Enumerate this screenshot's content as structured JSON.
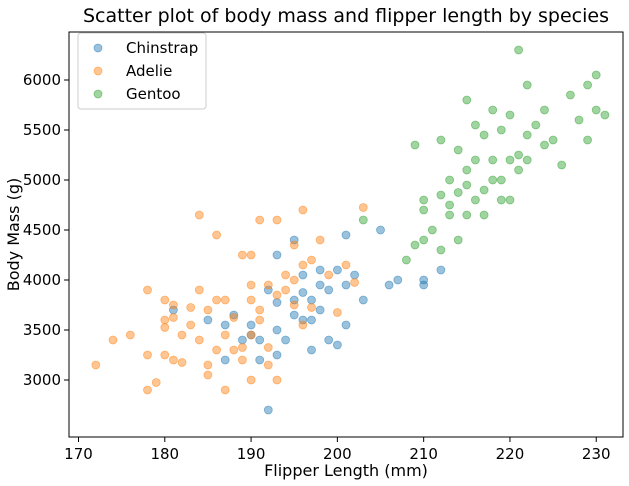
{
  "chart_data": {
    "type": "scatter",
    "title": "Scatter plot of body mass and flipper length by species",
    "xlabel": "Flipper Length (mm)",
    "ylabel": "Body Mass (g)",
    "xlim": [
      168.9,
      233.1
    ],
    "ylim": [
      2430,
      6480
    ],
    "xticks": [
      170,
      180,
      190,
      200,
      210,
      220,
      230
    ],
    "yticks": [
      3000,
      3500,
      4000,
      4500,
      5000,
      5500,
      6000
    ],
    "grid": false,
    "legend_position": "top-left",
    "series": [
      {
        "name": "Chinstrap",
        "color": "#1f77b4",
        "points": [
          [
            181,
            3700
          ],
          [
            185,
            3600
          ],
          [
            187,
            3200
          ],
          [
            187,
            3550
          ],
          [
            188,
            3650
          ],
          [
            189,
            3400
          ],
          [
            190,
            3450
          ],
          [
            190,
            3550
          ],
          [
            191,
            3200
          ],
          [
            191,
            3400
          ],
          [
            192,
            2700
          ],
          [
            192,
            3900
          ],
          [
            193,
            3250
          ],
          [
            193,
            3500
          ],
          [
            193,
            3775
          ],
          [
            193,
            4250
          ],
          [
            194,
            3400
          ],
          [
            195,
            3650
          ],
          [
            195,
            3800
          ],
          [
            195,
            4400
          ],
          [
            196,
            3600
          ],
          [
            196,
            3875
          ],
          [
            196,
            4050
          ],
          [
            197,
            3300
          ],
          [
            197,
            3600
          ],
          [
            197,
            3800
          ],
          [
            198,
            3700
          ],
          [
            198,
            3950
          ],
          [
            198,
            4100
          ],
          [
            199,
            3400
          ],
          [
            199,
            3900
          ],
          [
            200,
            3350
          ],
          [
            200,
            4100
          ],
          [
            201,
            3550
          ],
          [
            201,
            3950
          ],
          [
            201,
            4450
          ],
          [
            202,
            4050
          ],
          [
            203,
            3800
          ],
          [
            205,
            4500
          ],
          [
            206,
            3950
          ],
          [
            207,
            4000
          ],
          [
            210,
            3950
          ],
          [
            210,
            4000
          ],
          [
            212,
            4100
          ]
        ]
      },
      {
        "name": "Adelie",
        "color": "#ff7f0e",
        "points": [
          [
            172,
            3150
          ],
          [
            174,
            3400
          ],
          [
            176,
            3450
          ],
          [
            178,
            3250
          ],
          [
            178,
            3900
          ],
          [
            178,
            2900
          ],
          [
            179,
            2975
          ],
          [
            180,
            3600
          ],
          [
            180,
            3800
          ],
          [
            180,
            3250
          ],
          [
            181,
            3625
          ],
          [
            181,
            3200
          ],
          [
            181,
            3750
          ],
          [
            182,
            3450
          ],
          [
            182,
            3175
          ],
          [
            183,
            3550
          ],
          [
            184,
            3900
          ],
          [
            184,
            4650
          ],
          [
            184,
            3400
          ],
          [
            185,
            3700
          ],
          [
            185,
            3150
          ],
          [
            186,
            3800
          ],
          [
            186,
            4450
          ],
          [
            186,
            3300
          ],
          [
            187,
            3800
          ],
          [
            187,
            3450
          ],
          [
            187,
            2900
          ],
          [
            188,
            3300
          ],
          [
            189,
            3325
          ],
          [
            189,
            4250
          ],
          [
            189,
            3200
          ],
          [
            190,
            3800
          ],
          [
            190,
            3950
          ],
          [
            190,
            4250
          ],
          [
            190,
            3450
          ],
          [
            190,
            3000
          ],
          [
            191,
            3700
          ],
          [
            191,
            4600
          ],
          [
            191,
            3600
          ],
          [
            192,
            3950
          ],
          [
            192,
            3325
          ],
          [
            193,
            3850
          ],
          [
            193,
            4600
          ],
          [
            193,
            3000
          ],
          [
            194,
            3900
          ],
          [
            194,
            4050
          ],
          [
            195,
            3750
          ],
          [
            195,
            4000
          ],
          [
            195,
            4350
          ],
          [
            196,
            3550
          ],
          [
            196,
            4700
          ],
          [
            196,
            4150
          ],
          [
            197,
            3725
          ],
          [
            197,
            4200
          ],
          [
            198,
            4400
          ],
          [
            199,
            4050
          ],
          [
            200,
            3675
          ],
          [
            201,
            4150
          ],
          [
            202,
            3975
          ],
          [
            203,
            4725
          ],
          [
            185,
            3050
          ],
          [
            183,
            3725
          ],
          [
            188,
            3625
          ],
          [
            192,
            3150
          ],
          [
            180,
            3525
          ]
        ]
      },
      {
        "name": "Gentoo",
        "color": "#2ca02c",
        "points": [
          [
            203,
            4600
          ],
          [
            208,
            4200
          ],
          [
            209,
            4350
          ],
          [
            210,
            4400
          ],
          [
            210,
            4700
          ],
          [
            210,
            4800
          ],
          [
            211,
            4500
          ],
          [
            212,
            4850
          ],
          [
            212,
            4300
          ],
          [
            213,
            5000
          ],
          [
            213,
            4650
          ],
          [
            214,
            4400
          ],
          [
            214,
            5300
          ],
          [
            215,
            4650
          ],
          [
            215,
            5100
          ],
          [
            215,
            4950
          ],
          [
            216,
            4800
          ],
          [
            216,
            5200
          ],
          [
            217,
            4900
          ],
          [
            217,
            5450
          ],
          [
            217,
            4650
          ],
          [
            218,
            5000
          ],
          [
            218,
            5200
          ],
          [
            218,
            5700
          ],
          [
            219,
            5000
          ],
          [
            219,
            5500
          ],
          [
            220,
            5200
          ],
          [
            220,
            4800
          ],
          [
            220,
            5650
          ],
          [
            221,
            5100
          ],
          [
            221,
            6300
          ],
          [
            221,
            5250
          ],
          [
            222,
            5200
          ],
          [
            222,
            5950
          ],
          [
            222,
            5450
          ],
          [
            223,
            5550
          ],
          [
            224,
            5350
          ],
          [
            225,
            5400
          ],
          [
            226,
            5150
          ],
          [
            228,
            5600
          ],
          [
            229,
            5950
          ],
          [
            230,
            5700
          ],
          [
            230,
            6050
          ],
          [
            231,
            5650
          ],
          [
            209,
            5350
          ],
          [
            212,
            5400
          ],
          [
            214,
            4875
          ],
          [
            216,
            5550
          ],
          [
            219,
            4800
          ],
          [
            224,
            5700
          ],
          [
            227,
            5850
          ],
          [
            229,
            5400
          ],
          [
            213,
            4750
          ],
          [
            215,
            5800
          ]
        ]
      }
    ]
  }
}
